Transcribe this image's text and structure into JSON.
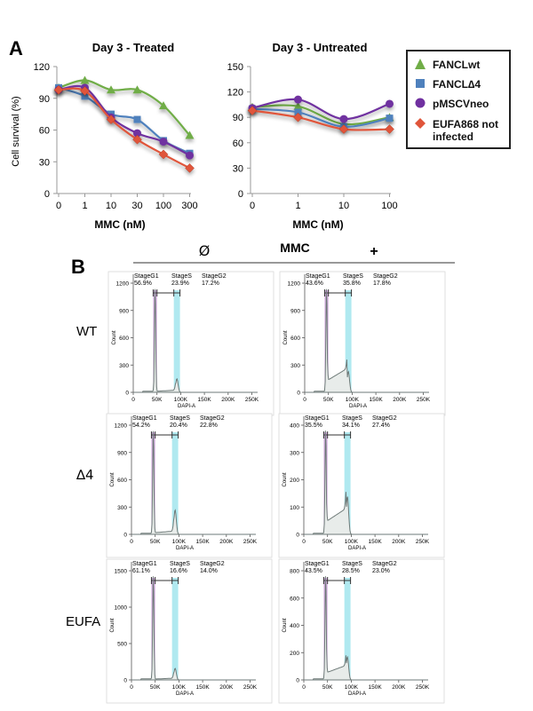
{
  "panel_labels": {
    "a": "A",
    "b": "B"
  },
  "colors": {
    "wt": "#70ad47",
    "d4": "#4f81bd",
    "neo": "#7030a0",
    "eufa": "#e0553a",
    "g1_band": "#c58fd6",
    "g2_band": "#8fe0ea",
    "histo_line": "#6e7a78"
  },
  "legend": [
    {
      "label": "FANCLwt",
      "symbol": "triangle",
      "color": "#70ad47"
    },
    {
      "label": "FANCL∆4",
      "symbol": "square",
      "color": "#4f81bd"
    },
    {
      "label": "pMSCVneo",
      "symbol": "circle",
      "color": "#7030a0"
    },
    {
      "label": "EUFA868 not infected",
      "symbol": "diamond",
      "color": "#e0553a"
    }
  ],
  "mmc_header": {
    "title": "MMC",
    "minus": "Ø",
    "plus": "+"
  },
  "row_labels": [
    "WT",
    "∆4",
    "EUFA"
  ],
  "chart_data": [
    {
      "type": "line",
      "title": "Day 3 - Treated",
      "xlabel": "MMC (nM)",
      "ylabel": "Cell survival (%)",
      "categories": [
        "0",
        "1",
        "10",
        "30",
        "100",
        "300"
      ],
      "ylim": [
        0,
        120
      ],
      "yticks": [
        0,
        30,
        60,
        90,
        120
      ],
      "series": [
        {
          "name": "FANCLwt",
          "values": [
            100,
            107,
            98,
            98,
            83,
            55
          ]
        },
        {
          "name": "FANCL∆4",
          "values": [
            100,
            92,
            75,
            70,
            50,
            38
          ]
        },
        {
          "name": "pMSCVneo",
          "values": [
            98,
            100,
            72,
            57,
            49,
            36
          ]
        },
        {
          "name": "EUFA868 not infected",
          "values": [
            98,
            97,
            70,
            51,
            37,
            24
          ]
        }
      ]
    },
    {
      "type": "line",
      "title": "Day 3 - Untreated",
      "xlabel": "MMC (nM)",
      "ylabel": "",
      "categories": [
        "0",
        "1",
        "10",
        "100"
      ],
      "ylim": [
        0,
        150
      ],
      "yticks": [
        0,
        30,
        60,
        90,
        120,
        150
      ],
      "series": [
        {
          "name": "FANCLwt",
          "values": [
            102,
            103,
            82,
            90
          ]
        },
        {
          "name": "FANCL∆4",
          "values": [
            100,
            96,
            79,
            89
          ]
        },
        {
          "name": "pMSCVneo",
          "values": [
            101,
            111,
            88,
            106
          ]
        },
        {
          "name": "EUFA868 not infected",
          "values": [
            98,
            90,
            76,
            76
          ]
        }
      ]
    },
    {
      "type": "area",
      "xlabel": "DAPI-A",
      "ylabel": "Count",
      "x_ticklabels": [
        "0",
        "50K",
        "100K",
        "150K",
        "200K",
        "250K"
      ],
      "xlim": [
        0,
        262144
      ],
      "panels": [
        {
          "row": "WT",
          "mmc": "Ø",
          "ymax": 1200,
          "yticks": [
            0,
            300,
            600,
            900,
            1200
          ],
          "stages": [
            {
              "name": "StageG1",
              "pct": "56.9%"
            },
            {
              "name": "StageS",
              "pct": "23.9%"
            },
            {
              "name": "StageG2",
              "pct": "17.2%"
            }
          ],
          "peaks": {
            "g1": 1180,
            "g2": 150,
            "s_level": 20
          }
        },
        {
          "row": "WT",
          "mmc": "+",
          "ymax": 1200,
          "yticks": [
            0,
            300,
            600,
            900,
            1200
          ],
          "stages": [
            {
              "name": "StageG1",
              "pct": "43.6%"
            },
            {
              "name": "StageS",
              "pct": "35.8%"
            },
            {
              "name": "StageG2",
              "pct": "17.8%"
            }
          ],
          "peaks": {
            "g1": 1180,
            "g2": 230,
            "s_level": 220
          }
        },
        {
          "row": "∆4",
          "mmc": "Ø",
          "ymax": 1200,
          "yticks": [
            0,
            300,
            600,
            900,
            1200
          ],
          "stages": [
            {
              "name": "StageG1",
              "pct": "54.2%"
            },
            {
              "name": "StageS",
              "pct": "20.4%"
            },
            {
              "name": "StageG2",
              "pct": "22.8%"
            }
          ],
          "peaks": {
            "g1": 1180,
            "g2": 270,
            "s_level": 30
          }
        },
        {
          "row": "∆4",
          "mmc": "+",
          "ymax": 400,
          "yticks": [
            0,
            100,
            200,
            300,
            400
          ],
          "stages": [
            {
              "name": "StageG1",
              "pct": "35.5%"
            },
            {
              "name": "StageS",
              "pct": "34.1%"
            },
            {
              "name": "StageG2",
              "pct": "27.4%"
            }
          ],
          "peaks": {
            "g1": 395,
            "g2": 140,
            "s_level": 80
          }
        },
        {
          "row": "EUFA",
          "mmc": "Ø",
          "ymax": 1500,
          "yticks": [
            0,
            500,
            1000,
            1500
          ],
          "stages": [
            {
              "name": "StageG1",
              "pct": "61.1%"
            },
            {
              "name": "StageS",
              "pct": "16.6%"
            },
            {
              "name": "StageG2",
              "pct": "14.0%"
            }
          ],
          "peaks": {
            "g1": 1480,
            "g2": 160,
            "s_level": 20
          }
        },
        {
          "row": "EUFA",
          "mmc": "+",
          "ymax": 800,
          "yticks": [
            0,
            200,
            400,
            600,
            800
          ],
          "stages": [
            {
              "name": "StageG1",
              "pct": "43.5%"
            },
            {
              "name": "StageS",
              "pct": "28.5%"
            },
            {
              "name": "StageG2",
              "pct": "23.0%"
            }
          ],
          "peaks": {
            "g1": 790,
            "g2": 170,
            "s_level": 90
          }
        }
      ]
    }
  ]
}
